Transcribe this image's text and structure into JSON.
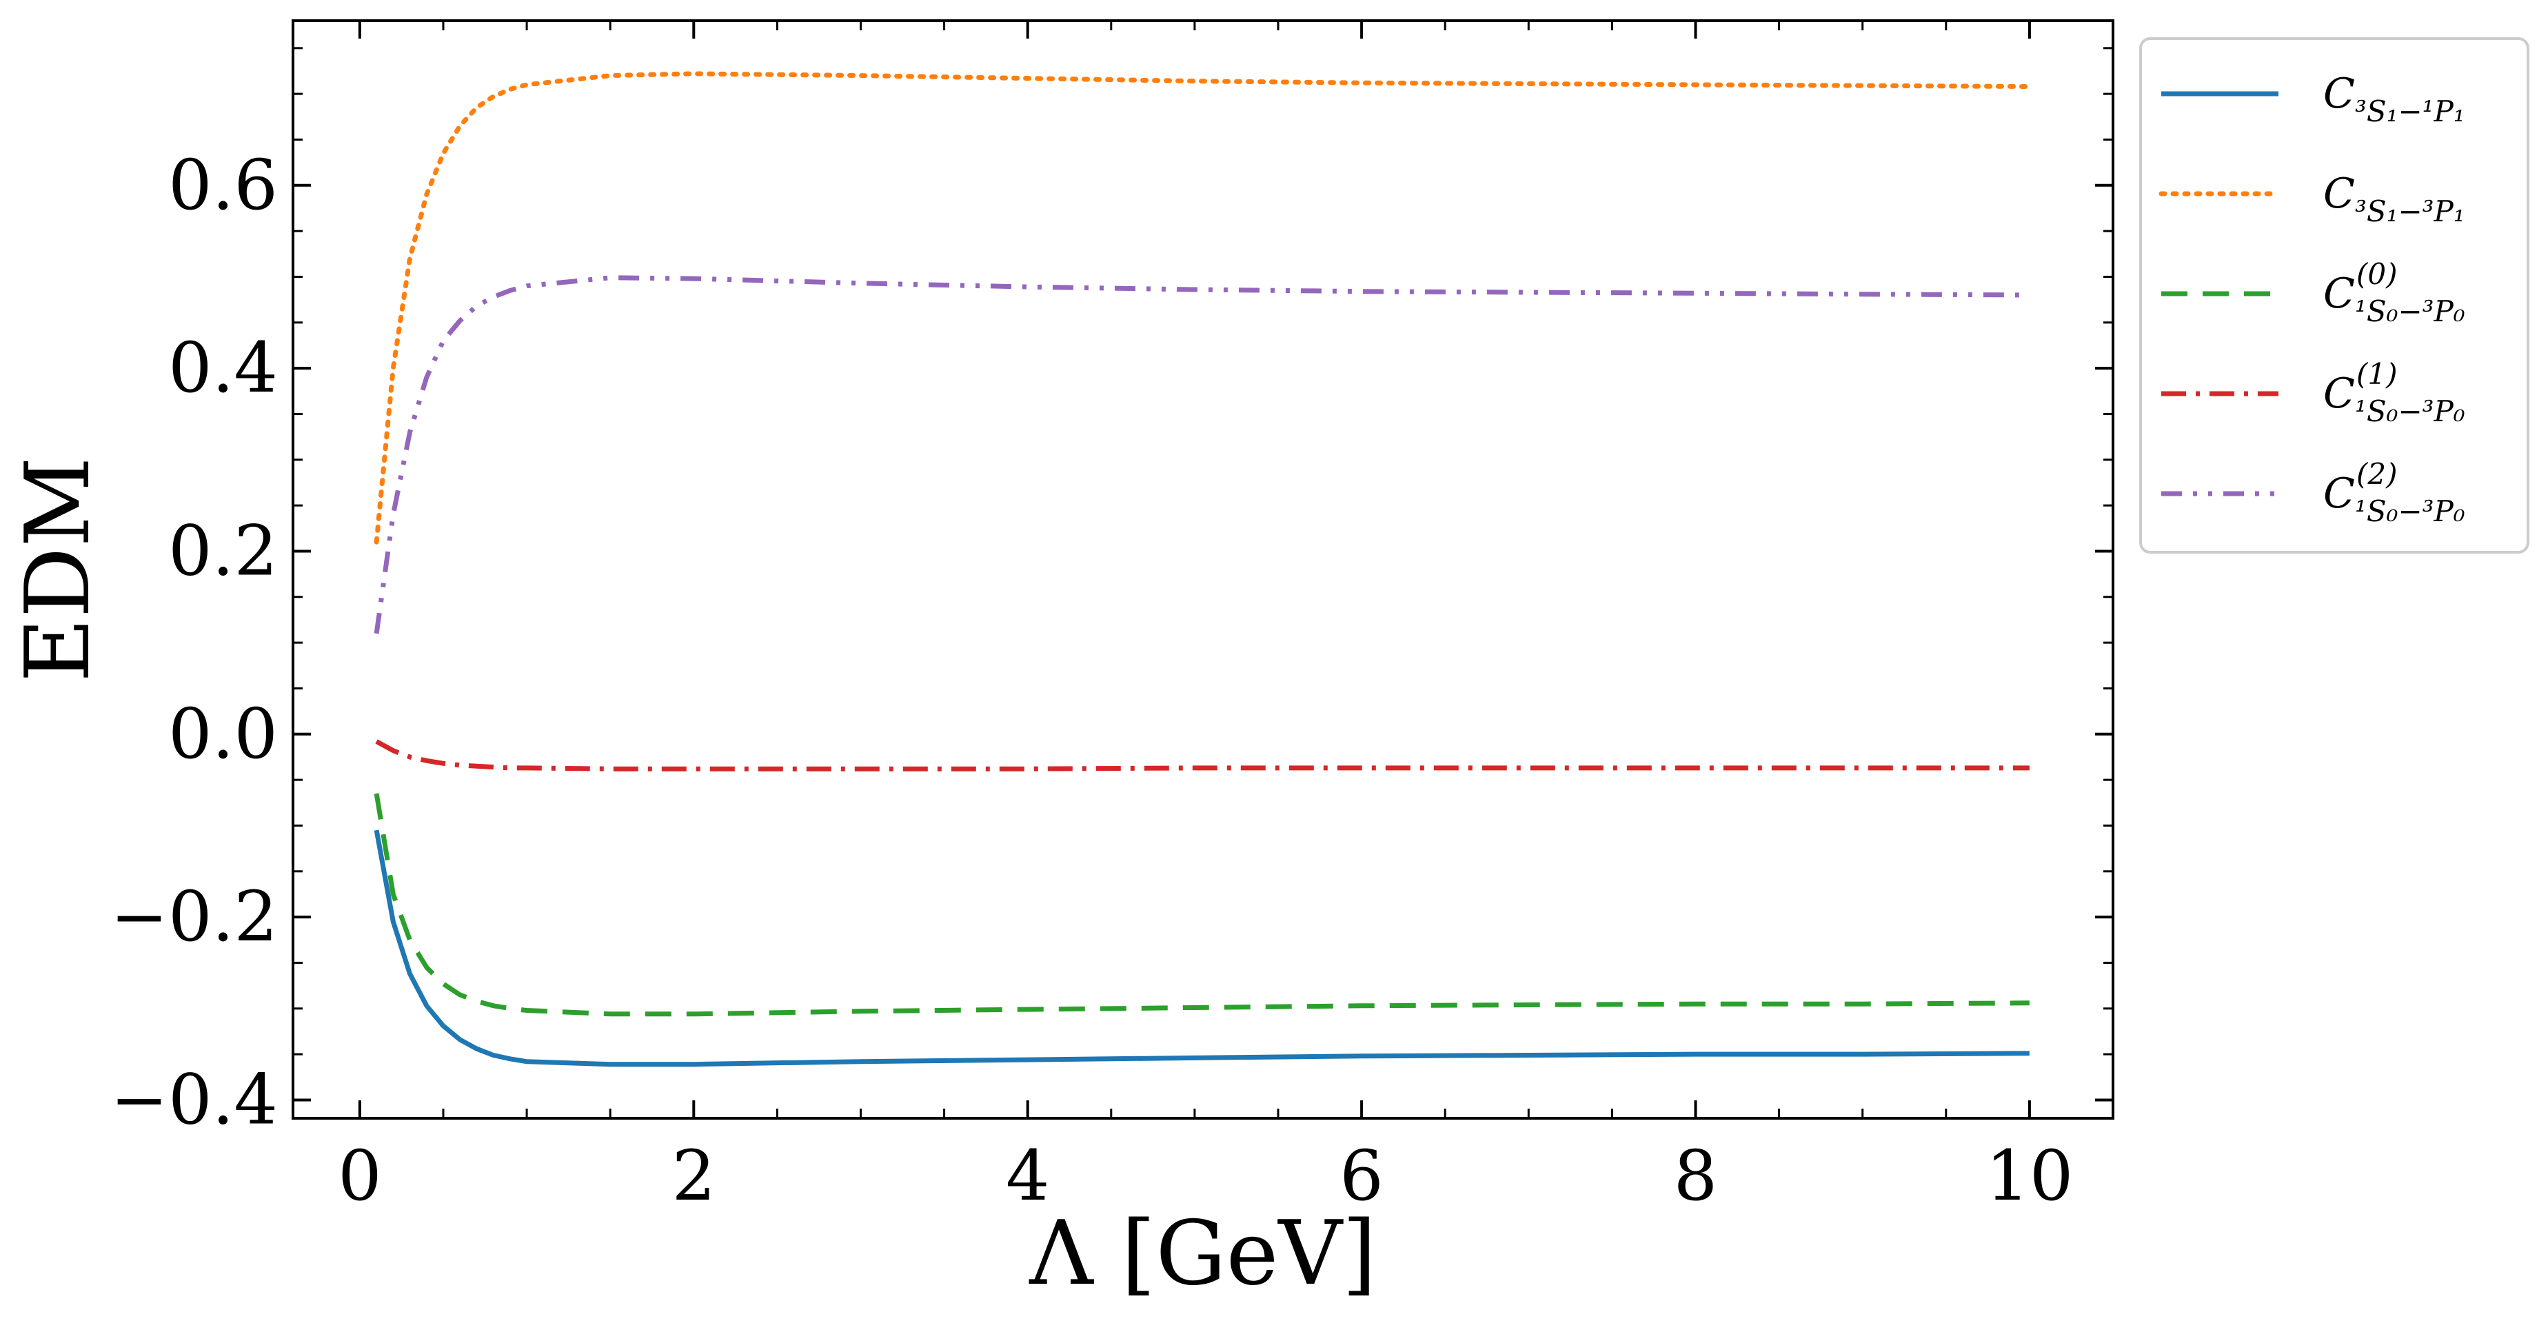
{
  "chart_data": {
    "type": "line",
    "title": "",
    "xlabel": "Λ [GeV]",
    "ylabel": "EDM",
    "xlim": [
      -0.4,
      10.5
    ],
    "ylim": [
      -0.42,
      0.78
    ],
    "xticks": [
      0,
      2,
      4,
      6,
      8,
      10
    ],
    "xtick_labels": [
      "0",
      "2",
      "4",
      "6",
      "8",
      "10"
    ],
    "yticks": [
      -0.4,
      -0.2,
      0.0,
      0.2,
      0.4,
      0.6
    ],
    "ytick_labels": [
      "−0.4",
      "−0.2",
      "0.0",
      "0.2",
      "0.4",
      "0.6"
    ],
    "legend_position": "outside-top-right",
    "series": [
      {
        "name": "C_{3S1−1P1}",
        "label_main": "C",
        "label_sub": "³S₁−¹P₁",
        "label_sup": "",
        "color": "#1f77b4",
        "style": "solid",
        "x": [
          0.1,
          0.2,
          0.3,
          0.4,
          0.5,
          0.6,
          0.7,
          0.8,
          0.9,
          1.0,
          1.5,
          2.0,
          3.0,
          4.0,
          5.0,
          6.0,
          7.0,
          8.0,
          9.0,
          10.0
        ],
        "y": [
          -0.105,
          -0.205,
          -0.262,
          -0.297,
          -0.319,
          -0.334,
          -0.344,
          -0.351,
          -0.355,
          -0.358,
          -0.361,
          -0.361,
          -0.358,
          -0.356,
          -0.354,
          -0.352,
          -0.351,
          -0.35,
          -0.35,
          -0.349
        ]
      },
      {
        "name": "C_{3S1−3P1}",
        "label_main": "C",
        "label_sub": "³S₁−³P₁",
        "label_sup": "",
        "color": "#ff7f0e",
        "style": "dotted",
        "x": [
          0.1,
          0.2,
          0.3,
          0.4,
          0.5,
          0.6,
          0.7,
          0.8,
          0.9,
          1.0,
          1.5,
          2.0,
          3.0,
          4.0,
          5.0,
          6.0,
          7.0,
          8.0,
          9.0,
          10.0
        ],
        "y": [
          0.21,
          0.4,
          0.52,
          0.59,
          0.635,
          0.665,
          0.685,
          0.697,
          0.705,
          0.71,
          0.72,
          0.722,
          0.72,
          0.717,
          0.714,
          0.712,
          0.711,
          0.71,
          0.709,
          0.708
        ]
      },
      {
        "name": "C^{(0)}_{1S0−3P0}",
        "label_main": "C",
        "label_sub": "¹S₀−³P₀",
        "label_sup": "(0)",
        "color": "#2ca02c",
        "style": "dashed",
        "x": [
          0.1,
          0.2,
          0.3,
          0.4,
          0.5,
          0.6,
          0.7,
          0.8,
          0.9,
          1.0,
          1.5,
          2.0,
          3.0,
          4.0,
          5.0,
          6.0,
          7.0,
          8.0,
          9.0,
          10.0
        ],
        "y": [
          -0.065,
          -0.175,
          -0.225,
          -0.255,
          -0.273,
          -0.285,
          -0.292,
          -0.297,
          -0.3,
          -0.302,
          -0.306,
          -0.306,
          -0.303,
          -0.301,
          -0.299,
          -0.297,
          -0.296,
          -0.295,
          -0.295,
          -0.294
        ]
      },
      {
        "name": "C^{(1)}_{1S0−3P0}",
        "label_main": "C",
        "label_sub": "¹S₀−³P₀",
        "label_sup": "(1)",
        "color": "#d62728",
        "style": "dashdot",
        "x": [
          0.1,
          0.2,
          0.3,
          0.4,
          0.5,
          0.6,
          0.7,
          0.8,
          0.9,
          1.0,
          1.5,
          2.0,
          3.0,
          4.0,
          5.0,
          6.0,
          7.0,
          8.0,
          9.0,
          10.0
        ],
        "y": [
          -0.008,
          -0.018,
          -0.025,
          -0.029,
          -0.032,
          -0.034,
          -0.035,
          -0.036,
          -0.037,
          -0.037,
          -0.038,
          -0.038,
          -0.038,
          -0.038,
          -0.037,
          -0.037,
          -0.037,
          -0.037,
          -0.037,
          -0.037
        ]
      },
      {
        "name": "C^{(2)}_{1S0−3P0}",
        "label_main": "C",
        "label_sub": "¹S₀−³P₀",
        "label_sup": "(2)",
        "color": "#9467bd",
        "style": "dashdotdot",
        "x": [
          0.1,
          0.2,
          0.3,
          0.4,
          0.5,
          0.6,
          0.7,
          0.8,
          0.9,
          1.0,
          1.5,
          2.0,
          3.0,
          4.0,
          5.0,
          6.0,
          7.0,
          8.0,
          9.0,
          10.0
        ],
        "y": [
          0.11,
          0.24,
          0.33,
          0.39,
          0.43,
          0.452,
          0.468,
          0.478,
          0.485,
          0.49,
          0.499,
          0.498,
          0.493,
          0.489,
          0.486,
          0.484,
          0.483,
          0.482,
          0.481,
          0.48
        ]
      }
    ]
  }
}
